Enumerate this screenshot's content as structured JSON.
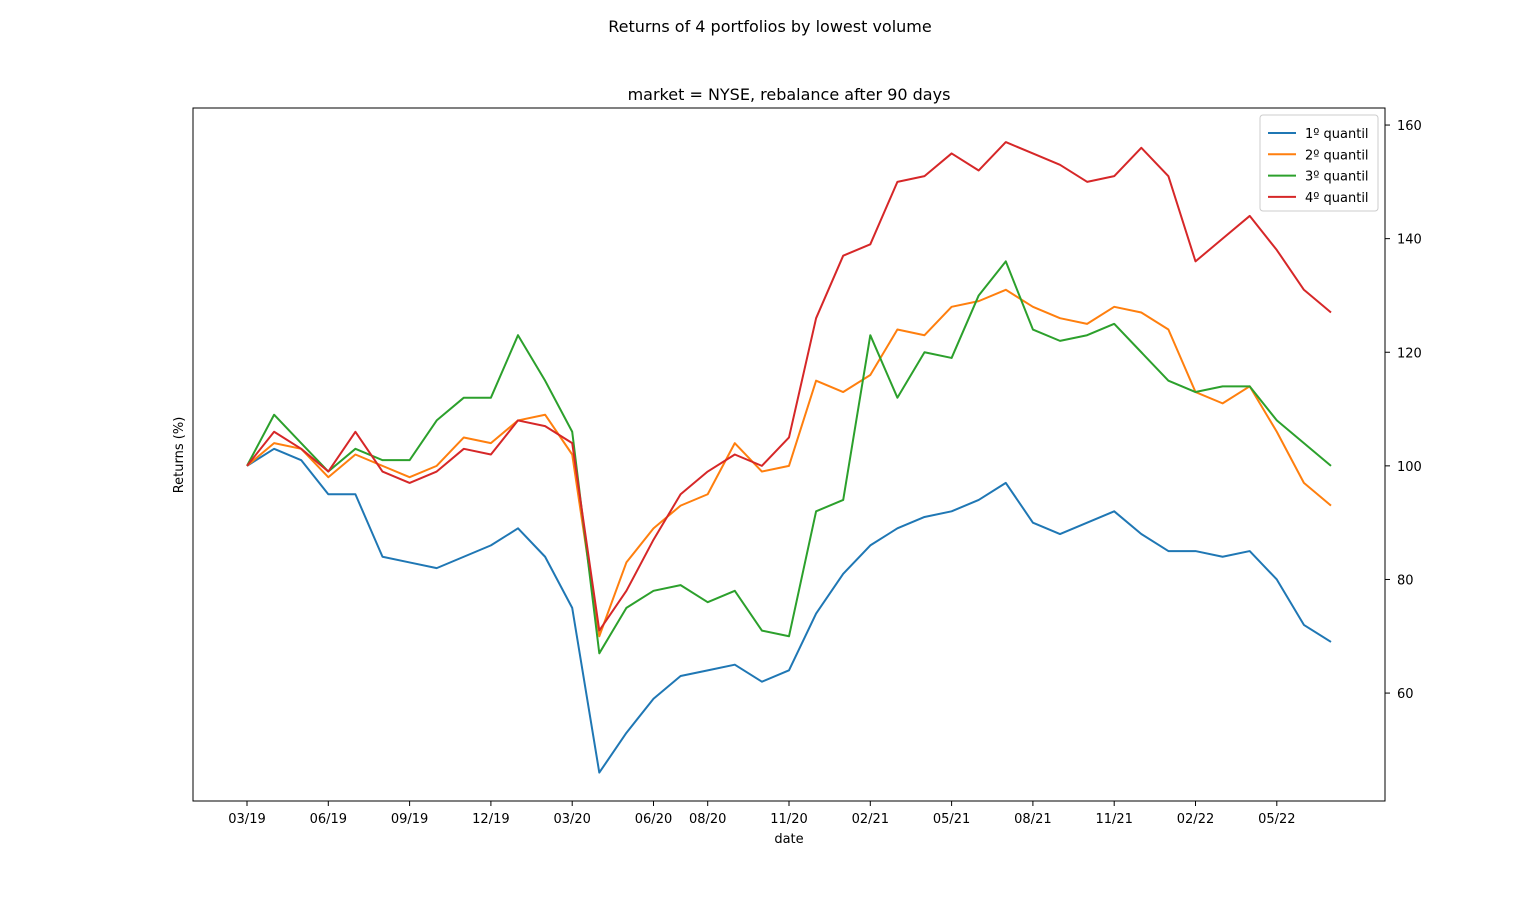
{
  "suptitle": "Returns of 4 portfolios by lowest volume",
  "chart_data": {
    "type": "line",
    "title": "market = NYSE, rebalance after 90 days",
    "xlabel": "date",
    "ylabel": "Returns (%)",
    "y_axis_side": "right",
    "ylim": [
      41,
      163
    ],
    "yticks": [
      60,
      80,
      100,
      120,
      140,
      160
    ],
    "x": [
      "2019-03",
      "2019-04",
      "2019-05",
      "2019-06",
      "2019-07",
      "2019-08",
      "2019-09",
      "2019-10",
      "2019-11",
      "2019-12",
      "2020-01",
      "2020-02",
      "2020-03",
      "2020-04",
      "2020-05",
      "2020-06",
      "2020-07",
      "2020-08",
      "2020-09",
      "2020-10",
      "2020-11",
      "2020-12",
      "2021-01",
      "2021-02",
      "2021-03",
      "2021-04",
      "2021-05",
      "2021-06",
      "2021-07",
      "2021-08",
      "2021-09",
      "2021-10",
      "2021-11",
      "2021-12",
      "2022-01",
      "2022-02",
      "2022-03",
      "2022-04",
      "2022-05",
      "2022-06",
      "2022-07"
    ],
    "xticks": [
      {
        "at": "2019-03",
        "label": "03/19"
      },
      {
        "at": "2019-06",
        "label": "06/19"
      },
      {
        "at": "2019-09",
        "label": "09/19"
      },
      {
        "at": "2019-12",
        "label": "12/19"
      },
      {
        "at": "2020-03",
        "label": "03/20"
      },
      {
        "at": "2020-06",
        "label": "06/20"
      },
      {
        "at": "2020-08",
        "label": "08/20"
      },
      {
        "at": "2020-11",
        "label": "11/20"
      },
      {
        "at": "2021-02",
        "label": "02/21"
      },
      {
        "at": "2021-05",
        "label": "05/21"
      },
      {
        "at": "2021-08",
        "label": "08/21"
      },
      {
        "at": "2021-11",
        "label": "11/21"
      },
      {
        "at": "2022-02",
        "label": "02/22"
      },
      {
        "at": "2022-05",
        "label": "05/22"
      }
    ],
    "legend_position": "top-right",
    "series": [
      {
        "name": "1º quantil",
        "color": "#1f77b4",
        "values": [
          100,
          103,
          101,
          95,
          95,
          84,
          83,
          82,
          84,
          86,
          89,
          84,
          75,
          46,
          53,
          59,
          63,
          64,
          65,
          62,
          64,
          74,
          81,
          86,
          89,
          91,
          92,
          94,
          97,
          90,
          88,
          90,
          92,
          88,
          85,
          85,
          84,
          85,
          80,
          72,
          69
        ]
      },
      {
        "name": "2º quantil",
        "color": "#ff7f0e",
        "values": [
          100,
          104,
          103,
          98,
          102,
          100,
          98,
          100,
          105,
          104,
          108,
          109,
          102,
          70,
          83,
          89,
          93,
          95,
          104,
          99,
          100,
          115,
          113,
          116,
          124,
          123,
          128,
          129,
          131,
          128,
          126,
          125,
          128,
          127,
          124,
          113,
          111,
          114,
          106,
          97,
          93
        ]
      },
      {
        "name": "3º quantil",
        "color": "#2ca02c",
        "values": [
          100,
          109,
          104,
          99,
          103,
          101,
          101,
          108,
          112,
          112,
          123,
          115,
          106,
          67,
          75,
          78,
          79,
          76,
          78,
          71,
          70,
          92,
          94,
          123,
          112,
          120,
          119,
          130,
          136,
          124,
          122,
          123,
          125,
          120,
          115,
          113,
          114,
          114,
          108,
          104,
          100
        ]
      },
      {
        "name": "4º quantil",
        "color": "#d62728",
        "values": [
          100,
          106,
          103,
          99,
          106,
          99,
          97,
          99,
          103,
          102,
          108,
          107,
          104,
          71,
          78,
          87,
          95,
          99,
          102,
          100,
          105,
          126,
          137,
          139,
          150,
          151,
          155,
          152,
          157,
          155,
          153,
          150,
          151,
          156,
          151,
          136,
          140,
          144,
          138,
          131,
          127
        ]
      }
    ]
  }
}
